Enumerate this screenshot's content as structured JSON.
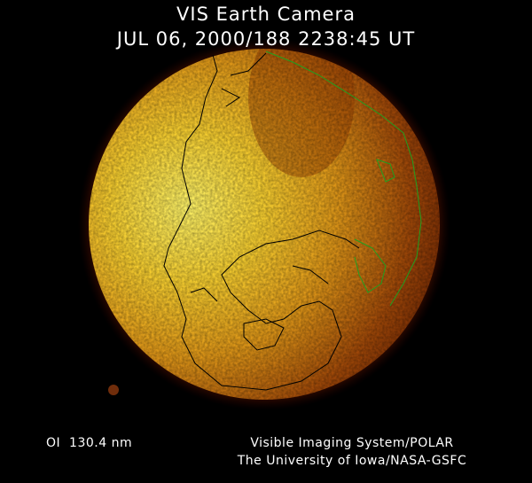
{
  "header": {
    "title": "VIS Earth Camera",
    "timestamp": "JUL 06, 2000/188 2238:45 UT"
  },
  "footer": {
    "wavelength": "OI  130.4 nm",
    "credit_line1": "Visible Imaging System/POLAR",
    "credit_line2": "The University of Iowa/NASA-GSFC"
  },
  "colors": {
    "background": "#000000",
    "glow_bright": "#fff060",
    "glow_mid": "#e09010",
    "glow_dark": "#601000",
    "coastline_day": "#000000",
    "coastline_night": "#20a020"
  }
}
